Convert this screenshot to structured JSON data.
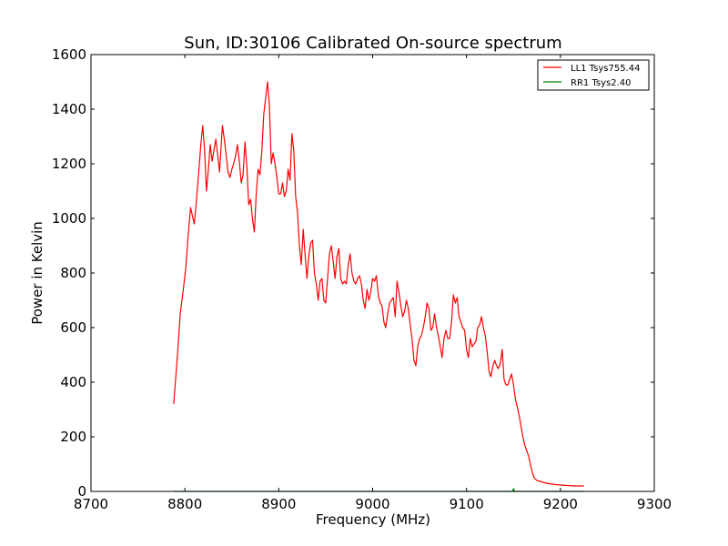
{
  "chart_data": {
    "type": "line",
    "title": "Sun, ID:30106 Calibrated On-source spectrum",
    "xlabel": "Frequency (MHz)",
    "ylabel": "Power in Kelvin",
    "xlim": [
      8700,
      9300
    ],
    "ylim": [
      0,
      1600
    ],
    "xticks": [
      8700,
      8800,
      8900,
      9000,
      9100,
      9200,
      9300
    ],
    "yticks": [
      0,
      200,
      400,
      600,
      800,
      1000,
      1200,
      1400,
      1600
    ],
    "grid": false,
    "legend_position": "top-right",
    "series": [
      {
        "name": "LL1 Tsys755.44",
        "color": "#ff0000",
        "points": [
          [
            8788,
            320
          ],
          [
            8791,
            450
          ],
          [
            8793,
            540
          ],
          [
            8795,
            650
          ],
          [
            8798,
            730
          ],
          [
            8801,
            820
          ],
          [
            8804,
            960
          ],
          [
            8806,
            1040
          ],
          [
            8808,
            1010
          ],
          [
            8810,
            980
          ],
          [
            8812,
            1050
          ],
          [
            8815,
            1180
          ],
          [
            8817,
            1270
          ],
          [
            8819,
            1340
          ],
          [
            8821,
            1250
          ],
          [
            8823,
            1100
          ],
          [
            8825,
            1180
          ],
          [
            8827,
            1270
          ],
          [
            8829,
            1210
          ],
          [
            8831,
            1250
          ],
          [
            8833,
            1290
          ],
          [
            8835,
            1230
          ],
          [
            8837,
            1170
          ],
          [
            8840,
            1340
          ],
          [
            8842,
            1290
          ],
          [
            8844,
            1230
          ],
          [
            8846,
            1170
          ],
          [
            8848,
            1150
          ],
          [
            8850,
            1180
          ],
          [
            8852,
            1200
          ],
          [
            8854,
            1230
          ],
          [
            8856,
            1270
          ],
          [
            8858,
            1210
          ],
          [
            8860,
            1130
          ],
          [
            8862,
            1160
          ],
          [
            8864,
            1280
          ],
          [
            8866,
            1190
          ],
          [
            8868,
            1050
          ],
          [
            8870,
            1070
          ],
          [
            8872,
            1000
          ],
          [
            8874,
            950
          ],
          [
            8876,
            1090
          ],
          [
            8878,
            1180
          ],
          [
            8880,
            1160
          ],
          [
            8882,
            1250
          ],
          [
            8884,
            1380
          ],
          [
            8886,
            1440
          ],
          [
            8888,
            1500
          ],
          [
            8890,
            1420
          ],
          [
            8892,
            1200
          ],
          [
            8894,
            1240
          ],
          [
            8896,
            1200
          ],
          [
            8898,
            1150
          ],
          [
            8900,
            1090
          ],
          [
            8902,
            1090
          ],
          [
            8904,
            1130
          ],
          [
            8906,
            1080
          ],
          [
            8908,
            1100
          ],
          [
            8910,
            1180
          ],
          [
            8912,
            1140
          ],
          [
            8914,
            1310
          ],
          [
            8916,
            1250
          ],
          [
            8918,
            1080
          ],
          [
            8920,
            1020
          ],
          [
            8922,
            900
          ],
          [
            8924,
            830
          ],
          [
            8926,
            960
          ],
          [
            8928,
            870
          ],
          [
            8930,
            780
          ],
          [
            8932,
            860
          ],
          [
            8934,
            910
          ],
          [
            8936,
            920
          ],
          [
            8938,
            800
          ],
          [
            8940,
            760
          ],
          [
            8942,
            700
          ],
          [
            8944,
            770
          ],
          [
            8946,
            780
          ],
          [
            8948,
            700
          ],
          [
            8950,
            690
          ],
          [
            8952,
            780
          ],
          [
            8954,
            870
          ],
          [
            8956,
            900
          ],
          [
            8958,
            840
          ],
          [
            8960,
            780
          ],
          [
            8962,
            860
          ],
          [
            8964,
            890
          ],
          [
            8966,
            780
          ],
          [
            8968,
            760
          ],
          [
            8970,
            770
          ],
          [
            8972,
            760
          ],
          [
            8974,
            830
          ],
          [
            8976,
            870
          ],
          [
            8978,
            800
          ],
          [
            8980,
            770
          ],
          [
            8982,
            760
          ],
          [
            8984,
            780
          ],
          [
            8986,
            790
          ],
          [
            8988,
            760
          ],
          [
            8990,
            700
          ],
          [
            8992,
            670
          ],
          [
            8994,
            740
          ],
          [
            8996,
            700
          ],
          [
            8998,
            730
          ],
          [
            9000,
            780
          ],
          [
            9002,
            770
          ],
          [
            9004,
            790
          ],
          [
            9006,
            720
          ],
          [
            9008,
            690
          ],
          [
            9010,
            680
          ],
          [
            9012,
            620
          ],
          [
            9014,
            600
          ],
          [
            9016,
            650
          ],
          [
            9018,
            690
          ],
          [
            9020,
            700
          ],
          [
            9022,
            710
          ],
          [
            9024,
            640
          ],
          [
            9026,
            770
          ],
          [
            9028,
            730
          ],
          [
            9030,
            680
          ],
          [
            9032,
            640
          ],
          [
            9034,
            660
          ],
          [
            9036,
            700
          ],
          [
            9038,
            670
          ],
          [
            9040,
            610
          ],
          [
            9042,
            560
          ],
          [
            9044,
            480
          ],
          [
            9046,
            460
          ],
          [
            9048,
            530
          ],
          [
            9050,
            560
          ],
          [
            9052,
            570
          ],
          [
            9054,
            600
          ],
          [
            9056,
            640
          ],
          [
            9058,
            690
          ],
          [
            9060,
            670
          ],
          [
            9062,
            590
          ],
          [
            9064,
            600
          ],
          [
            9066,
            650
          ],
          [
            9068,
            600
          ],
          [
            9070,
            570
          ],
          [
            9072,
            530
          ],
          [
            9074,
            490
          ],
          [
            9076,
            560
          ],
          [
            9078,
            590
          ],
          [
            9080,
            560
          ],
          [
            9082,
            560
          ],
          [
            9084,
            620
          ],
          [
            9086,
            720
          ],
          [
            9088,
            690
          ],
          [
            9090,
            710
          ],
          [
            9092,
            640
          ],
          [
            9094,
            620
          ],
          [
            9096,
            600
          ],
          [
            9098,
            590
          ],
          [
            9100,
            520
          ],
          [
            9102,
            490
          ],
          [
            9104,
            560
          ],
          [
            9106,
            530
          ],
          [
            9108,
            540
          ],
          [
            9110,
            550
          ],
          [
            9112,
            600
          ],
          [
            9114,
            610
          ],
          [
            9116,
            640
          ],
          [
            9118,
            600
          ],
          [
            9120,
            570
          ],
          [
            9122,
            510
          ],
          [
            9124,
            440
          ],
          [
            9126,
            420
          ],
          [
            9128,
            460
          ],
          [
            9130,
            480
          ],
          [
            9132,
            460
          ],
          [
            9134,
            450
          ],
          [
            9136,
            470
          ],
          [
            9138,
            520
          ],
          [
            9140,
            410
          ],
          [
            9142,
            390
          ],
          [
            9144,
            390
          ],
          [
            9146,
            410
          ],
          [
            9148,
            430
          ],
          [
            9150,
            390
          ],
          [
            9152,
            340
          ],
          [
            9154,
            310
          ],
          [
            9156,
            280
          ],
          [
            9158,
            240
          ],
          [
            9160,
            200
          ],
          [
            9162,
            170
          ],
          [
            9164,
            150
          ],
          [
            9166,
            130
          ],
          [
            9168,
            100
          ],
          [
            9170,
            70
          ],
          [
            9172,
            50
          ],
          [
            9175,
            40
          ],
          [
            9180,
            35
          ],
          [
            9185,
            30
          ],
          [
            9195,
            25
          ],
          [
            9205,
            22
          ],
          [
            9215,
            20
          ],
          [
            9225,
            20
          ]
        ]
      },
      {
        "name": "RR1 Tsys2.40",
        "color": "#008000",
        "points": [
          [
            8788,
            0
          ],
          [
            8850,
            0
          ],
          [
            8900,
            0
          ],
          [
            8950,
            0
          ],
          [
            9000,
            0
          ],
          [
            9050,
            0
          ],
          [
            9100,
            0
          ],
          [
            9149,
            0
          ],
          [
            9150,
            10
          ],
          [
            9151,
            0
          ],
          [
            9200,
            0
          ],
          [
            9225,
            0
          ]
        ]
      }
    ]
  }
}
